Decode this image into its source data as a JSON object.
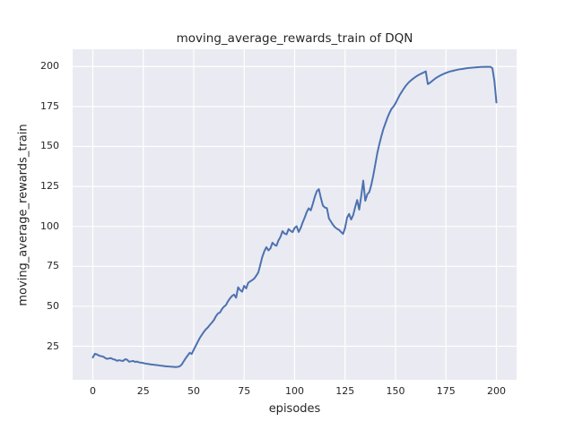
{
  "chart_data": {
    "type": "line",
    "title": "moving_average_rewards_train of DQN",
    "xlabel": "episodes",
    "ylabel": "moving_average_rewards_train",
    "xlim": [
      -10,
      210
    ],
    "ylim": [
      4,
      210.8
    ],
    "xticks": [
      0,
      25,
      50,
      75,
      100,
      125,
      150,
      175,
      200
    ],
    "yticks": [
      25,
      50,
      75,
      100,
      125,
      150,
      175,
      200
    ],
    "grid": true,
    "legend_position": "none",
    "plot_background_color": "#eaeaf2",
    "grid_color": "#ffffff",
    "text_color": "#262626",
    "series": [
      {
        "name": "moving_average_rewards_train",
        "color": "#4c72b0",
        "points": [
          [
            0,
            18.0
          ],
          [
            1,
            20.3
          ],
          [
            2,
            19.9
          ],
          [
            3,
            19.2
          ],
          [
            4,
            18.8
          ],
          [
            5,
            18.6
          ],
          [
            6,
            17.8
          ],
          [
            7,
            17.1
          ],
          [
            8,
            17.4
          ],
          [
            9,
            17.6
          ],
          [
            10,
            16.9
          ],
          [
            11,
            16.6
          ],
          [
            12,
            15.9
          ],
          [
            13,
            16.3
          ],
          [
            14,
            16.0
          ],
          [
            15,
            15.8
          ],
          [
            16,
            16.9
          ],
          [
            17,
            16.6
          ],
          [
            18,
            15.3
          ],
          [
            19,
            15.6
          ],
          [
            20,
            15.8
          ],
          [
            21,
            15.2
          ],
          [
            22,
            15.4
          ],
          [
            23,
            14.9
          ],
          [
            24,
            14.7
          ],
          [
            25,
            14.5
          ],
          [
            26,
            14.2
          ],
          [
            27,
            14.0
          ],
          [
            28,
            13.8
          ],
          [
            29,
            13.6
          ],
          [
            30,
            13.5
          ],
          [
            31,
            13.3
          ],
          [
            32,
            13.2
          ],
          [
            33,
            13.0
          ],
          [
            34,
            12.8
          ],
          [
            35,
            12.7
          ],
          [
            36,
            12.5
          ],
          [
            37,
            12.4
          ],
          [
            38,
            12.3
          ],
          [
            39,
            12.2
          ],
          [
            40,
            12.1
          ],
          [
            41,
            12.0
          ],
          [
            42,
            12.1
          ],
          [
            43,
            12.4
          ],
          [
            44,
            13.5
          ],
          [
            45,
            15.5
          ],
          [
            46,
            17.5
          ],
          [
            47,
            19.2
          ],
          [
            48,
            20.9
          ],
          [
            49,
            20.2
          ],
          [
            50,
            22.8
          ],
          [
            51,
            25.3
          ],
          [
            52,
            27.8
          ],
          [
            53,
            30.2
          ],
          [
            54,
            32.1
          ],
          [
            55,
            34.0
          ],
          [
            56,
            35.6
          ],
          [
            57,
            36.8
          ],
          [
            58,
            38.4
          ],
          [
            59,
            39.8
          ],
          [
            60,
            41.4
          ],
          [
            61,
            43.8
          ],
          [
            62,
            45.5
          ],
          [
            63,
            46.1
          ],
          [
            64,
            48.3
          ],
          [
            65,
            49.8
          ],
          [
            66,
            50.8
          ],
          [
            67,
            53.2
          ],
          [
            68,
            55.0
          ],
          [
            69,
            56.5
          ],
          [
            70,
            57.3
          ],
          [
            71,
            55.4
          ],
          [
            72,
            61.9
          ],
          [
            73,
            60.2
          ],
          [
            74,
            59.1
          ],
          [
            75,
            62.8
          ],
          [
            76,
            61.2
          ],
          [
            77,
            64.7
          ],
          [
            78,
            65.6
          ],
          [
            79,
            66.4
          ],
          [
            80,
            67.4
          ],
          [
            81,
            69.2
          ],
          [
            82,
            71.2
          ],
          [
            83,
            76.0
          ],
          [
            84,
            81.0
          ],
          [
            85,
            84.5
          ],
          [
            86,
            87.0
          ],
          [
            87,
            85.0
          ],
          [
            88,
            86.2
          ],
          [
            89,
            89.8
          ],
          [
            90,
            88.5
          ],
          [
            91,
            87.9
          ],
          [
            92,
            91.2
          ],
          [
            93,
            93.5
          ],
          [
            94,
            97.0
          ],
          [
            95,
            95.5
          ],
          [
            96,
            95.0
          ],
          [
            97,
            98.3
          ],
          [
            98,
            97.2
          ],
          [
            99,
            96.4
          ],
          [
            100,
            99.0
          ],
          [
            101,
            100.1
          ],
          [
            102,
            96.5
          ],
          [
            103,
            99.0
          ],
          [
            104,
            102.5
          ],
          [
            105,
            105.5
          ],
          [
            106,
            109.0
          ],
          [
            107,
            111.3
          ],
          [
            108,
            110.0
          ],
          [
            109,
            114.0
          ],
          [
            110,
            118.5
          ],
          [
            111,
            122.0
          ],
          [
            112,
            123.3
          ],
          [
            113,
            117.8
          ],
          [
            114,
            113.0
          ],
          [
            115,
            111.8
          ],
          [
            116,
            111.4
          ],
          [
            117,
            105.0
          ],
          [
            118,
            103.0
          ],
          [
            119,
            101.0
          ],
          [
            120,
            99.5
          ],
          [
            121,
            98.5
          ],
          [
            122,
            97.8
          ],
          [
            123,
            96.5
          ],
          [
            124,
            95.3
          ],
          [
            125,
            99.0
          ],
          [
            126,
            105.5
          ],
          [
            127,
            107.8
          ],
          [
            128,
            104.3
          ],
          [
            129,
            107.0
          ],
          [
            130,
            112.0
          ],
          [
            131,
            116.5
          ],
          [
            132,
            110.5
          ],
          [
            133,
            119.0
          ],
          [
            134,
            128.6
          ],
          [
            135,
            116.0
          ],
          [
            136,
            120.0
          ],
          [
            137,
            121.5
          ],
          [
            138,
            126.0
          ],
          [
            139,
            132.0
          ],
          [
            140,
            139.0
          ],
          [
            141,
            146.0
          ],
          [
            142,
            151.5
          ],
          [
            143,
            156.5
          ],
          [
            144,
            161.0
          ],
          [
            145,
            164.5
          ],
          [
            146,
            168.0
          ],
          [
            147,
            171.0
          ],
          [
            148,
            173.5
          ],
          [
            149,
            175.0
          ],
          [
            150,
            177.0
          ],
          [
            151,
            179.5
          ],
          [
            152,
            182.0
          ],
          [
            153,
            184.0
          ],
          [
            154,
            186.0
          ],
          [
            155,
            187.8
          ],
          [
            156,
            189.3
          ],
          [
            157,
            190.6
          ],
          [
            158,
            191.7
          ],
          [
            159,
            192.7
          ],
          [
            160,
            193.6
          ],
          [
            161,
            194.4
          ],
          [
            162,
            195.1
          ],
          [
            163,
            195.7
          ],
          [
            164,
            196.3
          ],
          [
            165,
            197.0
          ],
          [
            166,
            189.0
          ],
          [
            167,
            189.8
          ],
          [
            168,
            190.8
          ],
          [
            169,
            191.8
          ],
          [
            170,
            192.8
          ],
          [
            171,
            193.6
          ],
          [
            172,
            194.3
          ],
          [
            173,
            194.9
          ],
          [
            174,
            195.5
          ],
          [
            175,
            196.0
          ],
          [
            176,
            196.5
          ],
          [
            177,
            196.9
          ],
          [
            178,
            197.2
          ],
          [
            179,
            197.5
          ],
          [
            180,
            197.8
          ],
          [
            181,
            198.1
          ],
          [
            182,
            198.3
          ],
          [
            183,
            198.5
          ],
          [
            184,
            198.7
          ],
          [
            185,
            198.9
          ],
          [
            186,
            199.1
          ],
          [
            187,
            199.2
          ],
          [
            188,
            199.3
          ],
          [
            189,
            199.4
          ],
          [
            190,
            199.5
          ],
          [
            191,
            199.6
          ],
          [
            192,
            199.7
          ],
          [
            193,
            199.7
          ],
          [
            194,
            199.8
          ],
          [
            195,
            199.8
          ],
          [
            196,
            199.8
          ],
          [
            197,
            199.8
          ],
          [
            198,
            199.0
          ],
          [
            199,
            191.0
          ],
          [
            200,
            177.5
          ]
        ]
      }
    ]
  }
}
